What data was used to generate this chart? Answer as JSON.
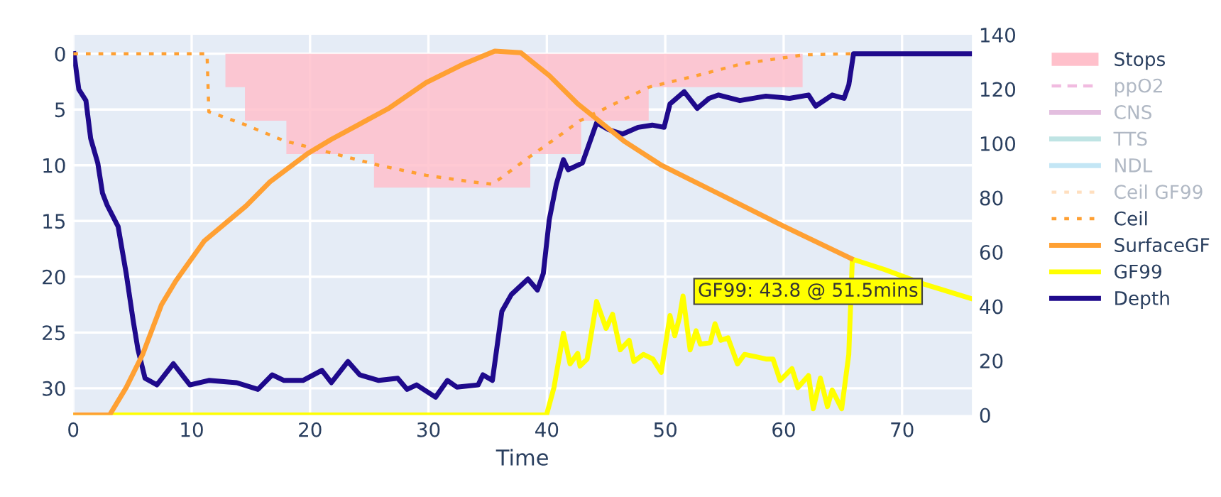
{
  "chart_data": {
    "type": "line",
    "xlabel": "Time",
    "xlim": [
      0,
      75.9
    ],
    "xticks": [
      0,
      10,
      20,
      30,
      40,
      50,
      60,
      70
    ],
    "ylim": [
      32.4,
      -1.7
    ],
    "yticks": [
      0,
      5,
      10,
      15,
      20,
      25,
      30
    ],
    "y2lim": [
      0,
      140
    ],
    "y2ticks": [
      0,
      20,
      40,
      60,
      80,
      100,
      120,
      140
    ],
    "grid": true,
    "legend": "right",
    "annotations": [
      "GF99: 43.8 @ 51.5mins"
    ],
    "series": [
      {
        "name": "Stops",
        "type": "area",
        "color": "#ffc0cb",
        "x": [
          12.85,
          12.85,
          14.5,
          14.5,
          18,
          18,
          25.4,
          25.4,
          38.6,
          38.6,
          42.9,
          42.9,
          48.6,
          48.6,
          61.6,
          61.6
        ],
        "values": [
          0,
          3,
          3,
          6,
          6,
          9,
          9,
          12,
          12,
          9,
          9,
          6,
          6,
          3,
          3,
          0
        ]
      },
      {
        "name": "ppO2",
        "color": "#e377c2",
        "line_style": "dashed"
      },
      {
        "name": "CNS",
        "color": "#c77dbf"
      },
      {
        "name": "TTS",
        "color": "#7fc9c9"
      },
      {
        "name": "NDL",
        "color": "#87ceeb"
      },
      {
        "name": "Ceil GF99",
        "color": "#ffbf80",
        "line_style": "dotted"
      },
      {
        "name": "Ceil",
        "color": "#ffa033",
        "line_style": "dotted",
        "x": [
          0,
          11.3,
          11.45,
          14.6,
          17.8,
          21.8,
          25.8,
          29.8,
          33.7,
          35.4,
          38.6,
          40.6,
          42.8,
          45.7,
          48.6,
          52.5,
          56.5,
          61.7,
          65.7
        ],
        "values": [
          0,
          0,
          5.2,
          6.4,
          7.8,
          8.9,
          10.0,
          10.9,
          11.5,
          11.7,
          9.2,
          7.7,
          6.0,
          4.5,
          3.0,
          2.0,
          0.9,
          0.1,
          0
        ]
      },
      {
        "name": "SurfaceGF",
        "axis": "y2",
        "color": "#ffa033",
        "x": [
          0,
          3.07,
          4.47,
          5.86,
          7.45,
          8.65,
          11.05,
          14.6,
          16.6,
          19.8,
          21.8,
          26.6,
          29.8,
          33,
          35.6,
          37.8,
          40.2,
          42.6,
          46.6,
          49.7,
          54.5,
          60.1,
          65.7
        ],
        "values": [
          0,
          0,
          10.1,
          22.3,
          40.6,
          49.3,
          64,
          77,
          85.8,
          96.3,
          101.5,
          112.8,
          122.4,
          129.3,
          134,
          133.4,
          125,
          114.6,
          100.6,
          91.9,
          81.5,
          69.3,
          57.6
        ]
      },
      {
        "name": "GF99",
        "axis": "y2",
        "color": "#ffff00",
        "x": [
          0,
          39.97,
          40.6,
          41.4,
          41.96,
          42.6,
          42.8,
          43.4,
          44.2,
          45.0,
          45.55,
          46.2,
          46.95,
          47.35,
          48.15,
          48.95,
          49.66,
          50.4,
          50.8,
          51.2,
          51.5,
          52.1,
          52.6,
          52.96,
          53.8,
          54.2,
          54.7,
          55.3,
          56.1,
          56.7,
          57.7,
          58.5,
          59.1,
          59.7,
          60.7,
          61.2,
          62.1,
          62.5,
          63.1,
          63.7,
          64.1,
          64.9,
          65.5,
          65.8,
          68.5,
          71.7,
          75.9
        ],
        "values": [
          0,
          0,
          10.1,
          30.1,
          18.8,
          22.7,
          18,
          20.6,
          41.8,
          31.9,
          37.1,
          24,
          27.5,
          19.7,
          22.3,
          20.6,
          15.7,
          36.6,
          29.2,
          35.9,
          43.8,
          24,
          31,
          26.1,
          26.6,
          33.6,
          27.5,
          28.4,
          18.8,
          22.3,
          21.4,
          20.6,
          20.6,
          12.7,
          17.1,
          10.1,
          14.5,
          2.3,
          13.6,
          3.1,
          9.2,
          2.3,
          22.3,
          57.4,
          53.6,
          48.4,
          42.8
        ]
      },
      {
        "name": "Depth",
        "color": "#1f0a8c",
        "x": [
          0.06,
          0.47,
          1.07,
          1.47,
          2.07,
          2.47,
          2.87,
          3.79,
          4.47,
          5.07,
          5.46,
          6.06,
          7.06,
          8.46,
          9.85,
          11.45,
          13.8,
          15.6,
          16.8,
          17.8,
          19.4,
          21.0,
          21.8,
          23.2,
          24.2,
          25.8,
          27.4,
          28.2,
          29.0,
          30.6,
          31.6,
          32.4,
          34.2,
          34.6,
          35.4,
          36.2,
          37.0,
          38.4,
          39.2,
          39.7,
          40.2,
          40.8,
          41.4,
          41.8,
          43.0,
          44.2,
          45.2,
          46.4,
          47.7,
          48.9,
          49.9,
          50.4,
          51.6,
          52.7,
          53.7,
          54.5,
          56.3,
          58.5,
          60.5,
          62.1,
          62.7,
          64.1,
          65.1,
          65.5,
          65.9,
          75.9
        ],
        "values": [
          0,
          3.2,
          4.2,
          7.6,
          9.8,
          12.5,
          13.6,
          15.5,
          19.7,
          24.0,
          26.5,
          29.1,
          29.7,
          27.8,
          29.7,
          29.3,
          29.5,
          30.1,
          28.8,
          29.3,
          29.3,
          28.4,
          29.5,
          27.6,
          28.8,
          29.3,
          29.1,
          30.1,
          29.7,
          30.8,
          29.3,
          29.9,
          29.7,
          28.8,
          29.3,
          23.1,
          21.6,
          20.2,
          21.2,
          19.7,
          14.9,
          11.7,
          9.5,
          10.4,
          9.8,
          6.2,
          6.8,
          7.2,
          6.6,
          6.4,
          6.6,
          4.5,
          3.4,
          4.9,
          4.0,
          3.7,
          4.2,
          3.8,
          4.0,
          3.7,
          4.7,
          3.7,
          4.0,
          2.8,
          0,
          0
        ]
      }
    ]
  }
}
